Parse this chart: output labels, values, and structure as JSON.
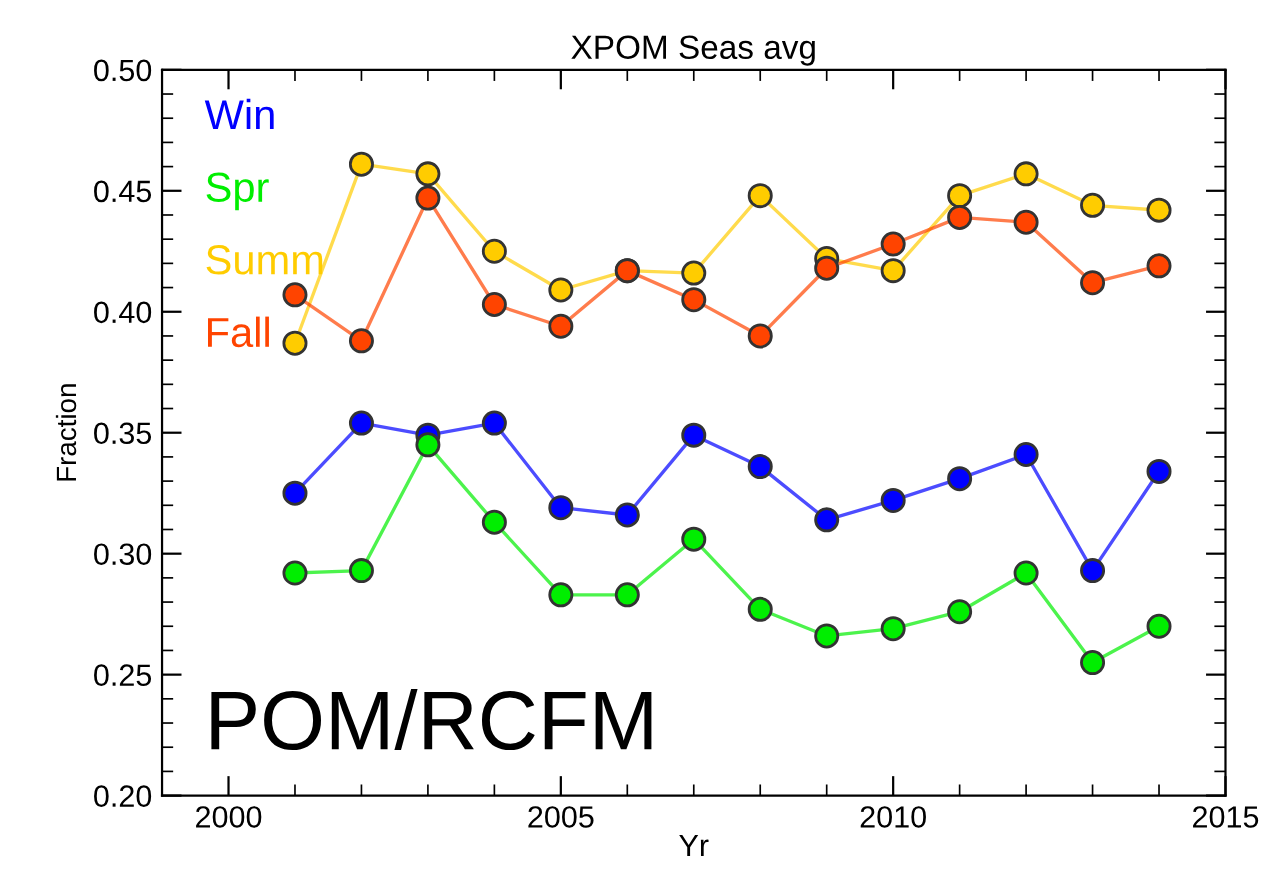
{
  "chart_data": {
    "type": "line",
    "title": "XPOM Seas avg",
    "xlabel": "Yr",
    "ylabel": "Fraction",
    "x": [
      2001,
      2002,
      2003,
      2004,
      2005,
      2006,
      2007,
      2008,
      2009,
      2010,
      2011,
      2012,
      2013,
      2014
    ],
    "series": [
      {
        "name": "Win",
        "color": "#0000ff",
        "values": [
          0.325,
          0.354,
          0.349,
          0.354,
          0.319,
          0.316,
          0.349,
          0.336,
          0.314,
          0.322,
          0.331,
          0.341,
          0.293,
          0.334
        ]
      },
      {
        "name": "Spr",
        "color": "#00ee00",
        "values": [
          0.292,
          0.293,
          0.345,
          0.313,
          0.283,
          0.283,
          0.306,
          0.277,
          0.266,
          0.269,
          0.276,
          0.292,
          0.255,
          0.27
        ]
      },
      {
        "name": "Summ",
        "color": "#ffcc00",
        "values": [
          0.387,
          0.461,
          0.457,
          0.425,
          0.409,
          0.417,
          0.416,
          0.448,
          0.422,
          0.417,
          0.448,
          0.457,
          0.444,
          0.442
        ]
      },
      {
        "name": "Fall",
        "color": "#ff4400",
        "values": [
          0.407,
          0.388,
          0.447,
          0.403,
          0.394,
          0.417,
          0.405,
          0.39,
          0.418,
          0.428,
          0.439,
          0.437,
          0.412,
          0.419
        ]
      }
    ],
    "xlim": [
      1999,
      2015
    ],
    "xticks": [
      {
        "value": 1999,
        "label": null
      },
      2000,
      {
        "value": 2001,
        "label": null
      },
      {
        "value": 2002,
        "label": null
      },
      {
        "value": 2003,
        "label": null
      },
      {
        "value": 2004,
        "label": null
      },
      2005,
      {
        "value": 2006,
        "label": null
      },
      {
        "value": 2007,
        "label": null
      },
      {
        "value": 2008,
        "label": null
      },
      {
        "value": 2009,
        "label": null
      },
      2010,
      {
        "value": 2011,
        "label": null
      },
      {
        "value": 2012,
        "label": null
      },
      {
        "value": 2013,
        "label": null
      },
      {
        "value": 2014,
        "label": null
      },
      2015
    ],
    "ylim": [
      0.2,
      0.5
    ],
    "yticks": [
      {
        "value": 0.2,
        "label": "0.20"
      },
      {
        "value": 0.21,
        "label": null
      },
      {
        "value": 0.22,
        "label": null
      },
      {
        "value": 0.23,
        "label": null
      },
      {
        "value": 0.24,
        "label": null
      },
      {
        "value": 0.25,
        "label": "0.25"
      },
      {
        "value": 0.26,
        "label": null
      },
      {
        "value": 0.27,
        "label": null
      },
      {
        "value": 0.28,
        "label": null
      },
      {
        "value": 0.29,
        "label": null
      },
      {
        "value": 0.3,
        "label": "0.30"
      },
      {
        "value": 0.31,
        "label": null
      },
      {
        "value": 0.32,
        "label": null
      },
      {
        "value": 0.33,
        "label": null
      },
      {
        "value": 0.34,
        "label": null
      },
      {
        "value": 0.35,
        "label": "0.35"
      },
      {
        "value": 0.36,
        "label": null
      },
      {
        "value": 0.37,
        "label": null
      },
      {
        "value": 0.38,
        "label": null
      },
      {
        "value": 0.39,
        "label": null
      },
      {
        "value": 0.4,
        "label": "0.40"
      },
      {
        "value": 0.41,
        "label": null
      },
      {
        "value": 0.42,
        "label": null
      },
      {
        "value": 0.43,
        "label": null
      },
      {
        "value": 0.44,
        "label": null
      },
      {
        "value": 0.45,
        "label": "0.45"
      },
      {
        "value": 0.46,
        "label": null
      },
      {
        "value": 0.47,
        "label": null
      },
      {
        "value": 0.48,
        "label": null
      },
      {
        "value": 0.49,
        "label": null
      },
      {
        "value": 0.5,
        "label": "0.50"
      }
    ],
    "annotations": [
      "POM/RCFM"
    ],
    "legend": "top left",
    "marker": "circle",
    "line_style": "solid",
    "grid": false
  }
}
